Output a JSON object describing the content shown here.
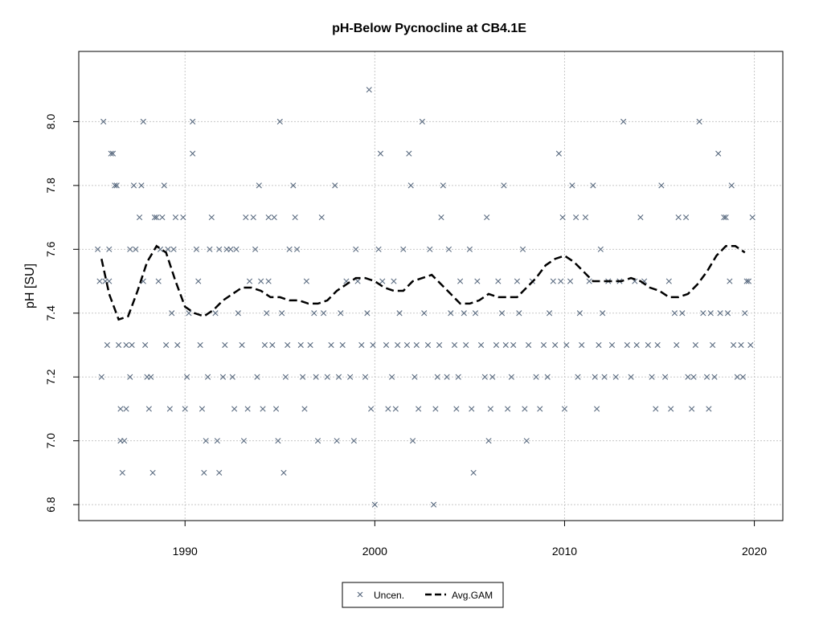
{
  "chart_data": {
    "type": "scatter",
    "title": "pH-Below Pycnocline at CB4.1E",
    "xlabel": "",
    "ylabel": "pH [SU]",
    "xlim": [
      1984.4,
      2021.5
    ],
    "ylim": [
      6.75,
      8.22
    ],
    "x_ticks": [
      "1990",
      "2000",
      "2010",
      "2020"
    ],
    "y_ticks": [
      "6.8",
      "7.0",
      "7.2",
      "7.4",
      "7.6",
      "7.8",
      "8.0"
    ],
    "grid": true,
    "legend": {
      "position": "bottom-center",
      "entries": [
        "Uncen.",
        "Avg.GAM"
      ]
    },
    "colors": {
      "points": "#5a6b80",
      "gam": "#000000",
      "grid": "#c8c8c8"
    },
    "series": [
      {
        "name": "Uncen.",
        "marker": "x",
        "points": [
          [
            1985.4,
            7.6
          ],
          [
            1985.5,
            7.5
          ],
          [
            1985.6,
            7.2
          ],
          [
            1985.7,
            8.0
          ],
          [
            1985.8,
            7.5
          ],
          [
            1985.9,
            7.3
          ],
          [
            1986.0,
            7.6
          ],
          [
            1986.0,
            7.5
          ],
          [
            1986.1,
            7.9
          ],
          [
            1986.2,
            7.9
          ],
          [
            1986.3,
            7.8
          ],
          [
            1986.4,
            7.8
          ],
          [
            1986.5,
            7.3
          ],
          [
            1986.6,
            7.1
          ],
          [
            1986.6,
            7.0
          ],
          [
            1986.7,
            6.9
          ],
          [
            1986.8,
            7.0
          ],
          [
            1986.9,
            7.3
          ],
          [
            1986.9,
            7.1
          ],
          [
            1987.1,
            7.6
          ],
          [
            1987.1,
            7.2
          ],
          [
            1987.2,
            7.3
          ],
          [
            1987.3,
            7.8
          ],
          [
            1987.4,
            7.6
          ],
          [
            1987.6,
            7.7
          ],
          [
            1987.7,
            7.8
          ],
          [
            1987.8,
            8.0
          ],
          [
            1987.8,
            7.5
          ],
          [
            1987.9,
            7.3
          ],
          [
            1988.0,
            7.2
          ],
          [
            1988.1,
            7.1
          ],
          [
            1988.2,
            7.2
          ],
          [
            1988.3,
            6.9
          ],
          [
            1988.4,
            7.7
          ],
          [
            1988.5,
            7.7
          ],
          [
            1988.6,
            7.5
          ],
          [
            1988.7,
            7.6
          ],
          [
            1988.8,
            7.7
          ],
          [
            1988.9,
            7.8
          ],
          [
            1989.0,
            7.3
          ],
          [
            1989.1,
            7.6
          ],
          [
            1989.2,
            7.1
          ],
          [
            1989.3,
            7.4
          ],
          [
            1989.4,
            7.6
          ],
          [
            1989.5,
            7.7
          ],
          [
            1989.6,
            7.3
          ],
          [
            1989.9,
            7.7
          ],
          [
            1990.0,
            7.1
          ],
          [
            1990.1,
            7.2
          ],
          [
            1990.2,
            7.4
          ],
          [
            1990.4,
            7.9
          ],
          [
            1990.4,
            8.0
          ],
          [
            1990.6,
            7.6
          ],
          [
            1990.7,
            7.5
          ],
          [
            1990.8,
            7.3
          ],
          [
            1990.9,
            7.1
          ],
          [
            1991.0,
            6.9
          ],
          [
            1991.1,
            7.0
          ],
          [
            1991.2,
            7.2
          ],
          [
            1991.3,
            7.6
          ],
          [
            1991.4,
            7.7
          ],
          [
            1991.6,
            7.4
          ],
          [
            1991.7,
            7.0
          ],
          [
            1991.8,
            7.6
          ],
          [
            1991.8,
            6.9
          ],
          [
            1992.0,
            7.2
          ],
          [
            1992.1,
            7.3
          ],
          [
            1992.2,
            7.6
          ],
          [
            1992.4,
            7.6
          ],
          [
            1992.5,
            7.2
          ],
          [
            1992.6,
            7.1
          ],
          [
            1992.7,
            7.6
          ],
          [
            1992.8,
            7.4
          ],
          [
            1993.0,
            7.3
          ],
          [
            1993.1,
            7.0
          ],
          [
            1993.2,
            7.7
          ],
          [
            1993.3,
            7.1
          ],
          [
            1993.4,
            7.5
          ],
          [
            1993.6,
            7.7
          ],
          [
            1993.7,
            7.6
          ],
          [
            1993.8,
            7.2
          ],
          [
            1993.9,
            7.8
          ],
          [
            1994.0,
            7.5
          ],
          [
            1994.1,
            7.1
          ],
          [
            1994.2,
            7.3
          ],
          [
            1994.3,
            7.4
          ],
          [
            1994.4,
            7.7
          ],
          [
            1994.4,
            7.5
          ],
          [
            1994.6,
            7.3
          ],
          [
            1994.7,
            7.7
          ],
          [
            1994.8,
            7.1
          ],
          [
            1994.9,
            7.0
          ],
          [
            1995.0,
            8.0
          ],
          [
            1995.1,
            7.4
          ],
          [
            1995.2,
            6.9
          ],
          [
            1995.3,
            7.2
          ],
          [
            1995.4,
            7.3
          ],
          [
            1995.5,
            7.6
          ],
          [
            1995.7,
            7.8
          ],
          [
            1995.8,
            7.7
          ],
          [
            1995.9,
            7.6
          ],
          [
            1996.1,
            7.3
          ],
          [
            1996.2,
            7.2
          ],
          [
            1996.3,
            7.1
          ],
          [
            1996.4,
            7.5
          ],
          [
            1996.6,
            7.3
          ],
          [
            1996.8,
            7.4
          ],
          [
            1996.9,
            7.2
          ],
          [
            1997.0,
            7.0
          ],
          [
            1997.2,
            7.7
          ],
          [
            1997.3,
            7.4
          ],
          [
            1997.5,
            7.2
          ],
          [
            1997.7,
            7.3
          ],
          [
            1997.9,
            7.8
          ],
          [
            1998.0,
            7.0
          ],
          [
            1998.1,
            7.2
          ],
          [
            1998.2,
            7.4
          ],
          [
            1998.3,
            7.3
          ],
          [
            1998.5,
            7.5
          ],
          [
            1998.7,
            7.2
          ],
          [
            1998.9,
            7.0
          ],
          [
            1999.0,
            7.6
          ],
          [
            1999.1,
            7.5
          ],
          [
            1999.3,
            7.3
          ],
          [
            1999.5,
            7.2
          ],
          [
            1999.6,
            7.4
          ],
          [
            1999.7,
            8.1
          ],
          [
            1999.8,
            7.1
          ],
          [
            1999.9,
            7.3
          ],
          [
            2000.0,
            6.8
          ],
          [
            2000.2,
            7.6
          ],
          [
            2000.3,
            7.9
          ],
          [
            2000.4,
            7.5
          ],
          [
            2000.6,
            7.3
          ],
          [
            2000.7,
            7.1
          ],
          [
            2000.9,
            7.2
          ],
          [
            2001.0,
            7.5
          ],
          [
            2001.1,
            7.1
          ],
          [
            2001.2,
            7.3
          ],
          [
            2001.3,
            7.4
          ],
          [
            2001.5,
            7.6
          ],
          [
            2001.7,
            7.3
          ],
          [
            2001.8,
            7.9
          ],
          [
            2001.9,
            7.8
          ],
          [
            2002.0,
            7.0
          ],
          [
            2002.1,
            7.2
          ],
          [
            2002.2,
            7.3
          ],
          [
            2002.3,
            7.1
          ],
          [
            2002.5,
            8.0
          ],
          [
            2002.6,
            7.4
          ],
          [
            2002.8,
            7.3
          ],
          [
            2002.9,
            7.6
          ],
          [
            2003.1,
            6.8
          ],
          [
            2003.2,
            7.1
          ],
          [
            2003.3,
            7.2
          ],
          [
            2003.4,
            7.3
          ],
          [
            2003.5,
            7.7
          ],
          [
            2003.6,
            7.8
          ],
          [
            2003.8,
            7.2
          ],
          [
            2003.9,
            7.6
          ],
          [
            2004.0,
            7.4
          ],
          [
            2004.2,
            7.3
          ],
          [
            2004.3,
            7.1
          ],
          [
            2004.4,
            7.2
          ],
          [
            2004.5,
            7.5
          ],
          [
            2004.7,
            7.4
          ],
          [
            2004.8,
            7.3
          ],
          [
            2005.0,
            7.6
          ],
          [
            2005.1,
            7.1
          ],
          [
            2005.2,
            6.9
          ],
          [
            2005.3,
            7.4
          ],
          [
            2005.4,
            7.5
          ],
          [
            2005.6,
            7.3
          ],
          [
            2005.8,
            7.2
          ],
          [
            2005.9,
            7.7
          ],
          [
            2006.0,
            7.0
          ],
          [
            2006.1,
            7.1
          ],
          [
            2006.2,
            7.2
          ],
          [
            2006.4,
            7.3
          ],
          [
            2006.5,
            7.5
          ],
          [
            2006.7,
            7.4
          ],
          [
            2006.8,
            7.8
          ],
          [
            2006.9,
            7.3
          ],
          [
            2007.0,
            7.1
          ],
          [
            2007.2,
            7.2
          ],
          [
            2007.3,
            7.3
          ],
          [
            2007.5,
            7.5
          ],
          [
            2007.6,
            7.4
          ],
          [
            2007.8,
            7.6
          ],
          [
            2007.9,
            7.1
          ],
          [
            2008.0,
            7.0
          ],
          [
            2008.1,
            7.3
          ],
          [
            2008.3,
            7.5
          ],
          [
            2008.5,
            7.2
          ],
          [
            2008.7,
            7.1
          ],
          [
            2008.9,
            7.3
          ],
          [
            2009.1,
            7.2
          ],
          [
            2009.2,
            7.4
          ],
          [
            2009.4,
            7.5
          ],
          [
            2009.5,
            7.3
          ],
          [
            2009.7,
            7.9
          ],
          [
            2009.8,
            7.5
          ],
          [
            2009.9,
            7.7
          ],
          [
            2010.0,
            7.1
          ],
          [
            2010.1,
            7.3
          ],
          [
            2010.3,
            7.5
          ],
          [
            2010.4,
            7.8
          ],
          [
            2010.6,
            7.7
          ],
          [
            2010.7,
            7.2
          ],
          [
            2010.8,
            7.4
          ],
          [
            2010.9,
            7.3
          ],
          [
            2011.1,
            7.7
          ],
          [
            2011.3,
            7.5
          ],
          [
            2011.5,
            7.8
          ],
          [
            2011.6,
            7.2
          ],
          [
            2011.7,
            7.1
          ],
          [
            2011.8,
            7.3
          ],
          [
            2011.9,
            7.6
          ],
          [
            2012.0,
            7.4
          ],
          [
            2012.1,
            7.2
          ],
          [
            2012.3,
            7.5
          ],
          [
            2012.5,
            7.3
          ],
          [
            2012.7,
            7.2
          ],
          [
            2012.9,
            7.5
          ],
          [
            2013.1,
            8.0
          ],
          [
            2013.3,
            7.3
          ],
          [
            2013.5,
            7.2
          ],
          [
            2013.7,
            7.5
          ],
          [
            2013.8,
            7.3
          ],
          [
            2014.0,
            7.7
          ],
          [
            2014.2,
            7.5
          ],
          [
            2014.4,
            7.3
          ],
          [
            2014.6,
            7.2
          ],
          [
            2014.8,
            7.1
          ],
          [
            2014.9,
            7.3
          ],
          [
            2015.1,
            7.8
          ],
          [
            2015.3,
            7.2
          ],
          [
            2015.5,
            7.5
          ],
          [
            2015.6,
            7.1
          ],
          [
            2015.8,
            7.4
          ],
          [
            2015.9,
            7.3
          ],
          [
            2016.0,
            7.7
          ],
          [
            2016.2,
            7.4
          ],
          [
            2016.4,
            7.7
          ],
          [
            2016.5,
            7.2
          ],
          [
            2016.7,
            7.1
          ],
          [
            2016.8,
            7.2
          ],
          [
            2016.9,
            7.3
          ],
          [
            2017.1,
            8.0
          ],
          [
            2017.3,
            7.4
          ],
          [
            2017.5,
            7.2
          ],
          [
            2017.6,
            7.1
          ],
          [
            2017.7,
            7.4
          ],
          [
            2017.8,
            7.3
          ],
          [
            2017.9,
            7.2
          ],
          [
            2018.1,
            7.9
          ],
          [
            2018.2,
            7.4
          ],
          [
            2018.4,
            7.7
          ],
          [
            2018.5,
            7.7
          ],
          [
            2018.6,
            7.4
          ],
          [
            2018.7,
            7.5
          ],
          [
            2018.8,
            7.8
          ],
          [
            2018.9,
            7.3
          ],
          [
            2019.1,
            7.2
          ],
          [
            2019.3,
            7.3
          ],
          [
            2019.4,
            7.2
          ],
          [
            2019.5,
            7.4
          ],
          [
            2019.6,
            7.5
          ],
          [
            2019.7,
            7.5
          ],
          [
            2019.8,
            7.3
          ],
          [
            2019.9,
            7.7
          ]
        ]
      },
      {
        "name": "Avg.GAM",
        "style": "dashed-line",
        "x": [
          1985.6,
          1986.0,
          1986.5,
          1987.0,
          1987.5,
          1988.0,
          1988.5,
          1989.0,
          1989.5,
          1990.0,
          1990.5,
          1991.0,
          1991.5,
          1992.0,
          1992.5,
          1993.0,
          1993.5,
          1994.0,
          1994.5,
          1995.0,
          1995.5,
          1996.0,
          1996.5,
          1997.0,
          1997.5,
          1998.0,
          1998.5,
          1999.0,
          1999.5,
          2000.0,
          2000.5,
          2001.0,
          2001.5,
          2002.0,
          2002.5,
          2003.0,
          2003.5,
          2004.0,
          2004.5,
          2005.0,
          2005.5,
          2006.0,
          2006.5,
          2007.0,
          2007.5,
          2008.0,
          2008.5,
          2009.0,
          2009.5,
          2010.0,
          2010.5,
          2011.0,
          2011.5,
          2012.0,
          2012.5,
          2013.0,
          2013.5,
          2014.0,
          2014.5,
          2015.0,
          2015.5,
          2016.0,
          2016.5,
          2017.0,
          2017.5,
          2018.0,
          2018.5,
          2019.0,
          2019.5
        ],
        "y": [
          7.57,
          7.46,
          7.38,
          7.39,
          7.47,
          7.56,
          7.61,
          7.59,
          7.5,
          7.42,
          7.4,
          7.39,
          7.41,
          7.44,
          7.46,
          7.48,
          7.48,
          7.47,
          7.45,
          7.45,
          7.44,
          7.44,
          7.43,
          7.43,
          7.44,
          7.47,
          7.49,
          7.51,
          7.51,
          7.5,
          7.48,
          7.47,
          7.47,
          7.5,
          7.51,
          7.52,
          7.49,
          7.46,
          7.43,
          7.43,
          7.44,
          7.46,
          7.45,
          7.45,
          7.45,
          7.48,
          7.51,
          7.55,
          7.57,
          7.58,
          7.56,
          7.53,
          7.5,
          7.5,
          7.5,
          7.5,
          7.51,
          7.5,
          7.48,
          7.47,
          7.45,
          7.45,
          7.46,
          7.49,
          7.53,
          7.58,
          7.61,
          7.61,
          7.59
        ]
      }
    ]
  }
}
